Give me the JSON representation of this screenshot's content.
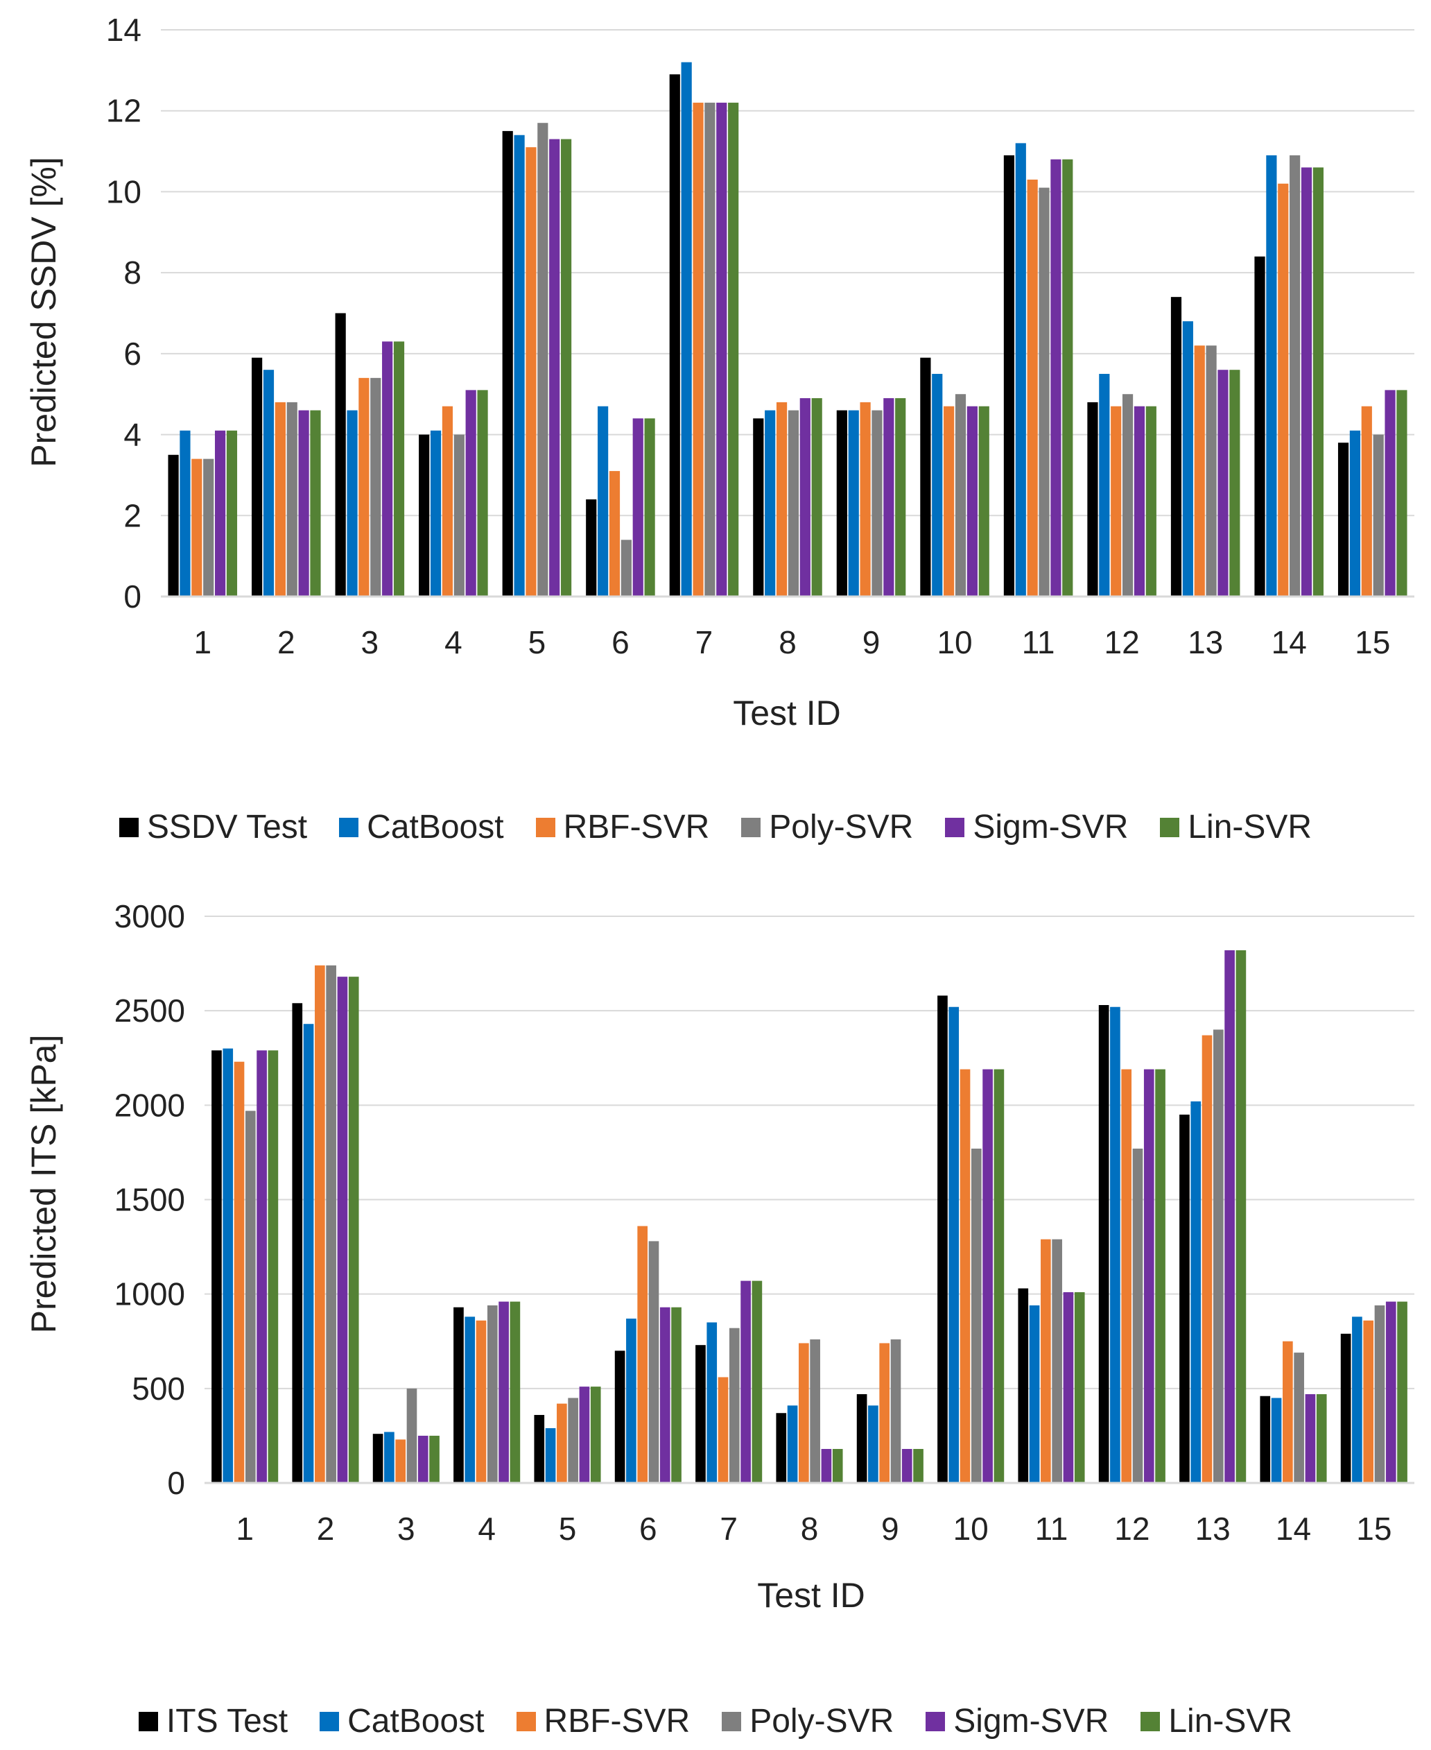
{
  "colors": {
    "test": "#000000",
    "catboost": "#0070C0",
    "rbf": "#ED7D31",
    "poly": "#7F7F7F",
    "sigm": "#7030A0",
    "lin": "#548235",
    "grid": "#D9D9D9",
    "axis": "#D9D9D9"
  },
  "chart_data": [
    {
      "type": "bar",
      "title": "",
      "xlabel": "Test ID",
      "ylabel": "Predicted SSDV [%]",
      "ylim": [
        0,
        14
      ],
      "yticks": [
        "0",
        "2",
        "4",
        "6",
        "8",
        "10",
        "12",
        "14"
      ],
      "categories": [
        "1",
        "2",
        "3",
        "4",
        "5",
        "6",
        "7",
        "8",
        "9",
        "10",
        "11",
        "12",
        "13",
        "14",
        "15"
      ],
      "grid": true,
      "legend_position": "bottom",
      "series": [
        {
          "name": "SSDV Test",
          "color_key": "test",
          "values": [
            3.5,
            5.9,
            7.0,
            4.0,
            11.5,
            2.4,
            12.9,
            4.4,
            4.6,
            5.9,
            10.9,
            4.8,
            7.4,
            8.4,
            3.8
          ]
        },
        {
          "name": "CatBoost",
          "color_key": "catboost",
          "values": [
            4.1,
            5.6,
            4.6,
            4.1,
            11.4,
            4.7,
            13.2,
            4.6,
            4.6,
            5.5,
            11.2,
            5.5,
            6.8,
            10.9,
            4.1
          ]
        },
        {
          "name": "RBF-SVR",
          "color_key": "rbf",
          "values": [
            3.4,
            4.8,
            5.4,
            4.7,
            11.1,
            3.1,
            12.2,
            4.8,
            4.8,
            4.7,
            10.3,
            4.7,
            6.2,
            10.2,
            4.7
          ]
        },
        {
          "name": "Poly-SVR",
          "color_key": "poly",
          "values": [
            3.4,
            4.8,
            5.4,
            4.0,
            11.7,
            1.4,
            12.2,
            4.6,
            4.6,
            5.0,
            10.1,
            5.0,
            6.2,
            10.9,
            4.0
          ]
        },
        {
          "name": "Sigm-SVR",
          "color_key": "sigm",
          "values": [
            4.1,
            4.6,
            6.3,
            5.1,
            11.3,
            4.4,
            12.2,
            4.9,
            4.9,
            4.7,
            10.8,
            4.7,
            5.6,
            10.6,
            5.1
          ]
        },
        {
          "name": "Lin-SVR",
          "color_key": "lin",
          "values": [
            4.1,
            4.6,
            6.3,
            5.1,
            11.3,
            4.4,
            12.2,
            4.9,
            4.9,
            4.7,
            10.8,
            4.7,
            5.6,
            10.6,
            5.1
          ]
        }
      ]
    },
    {
      "type": "bar",
      "title": "",
      "xlabel": "Test ID",
      "ylabel": "Predicted ITS [kPa]",
      "ylim": [
        0,
        3000
      ],
      "yticks": [
        "0",
        "500",
        "1000",
        "1500",
        "2000",
        "2500",
        "3000"
      ],
      "categories": [
        "1",
        "2",
        "3",
        "4",
        "5",
        "6",
        "7",
        "8",
        "9",
        "10",
        "11",
        "12",
        "13",
        "14",
        "15"
      ],
      "grid": true,
      "legend_position": "bottom",
      "series": [
        {
          "name": "ITS Test",
          "color_key": "test",
          "values": [
            2290,
            2540,
            260,
            930,
            360,
            700,
            730,
            370,
            470,
            2580,
            1030,
            2530,
            1950,
            460,
            790
          ]
        },
        {
          "name": "CatBoost",
          "color_key": "catboost",
          "values": [
            2300,
            2430,
            270,
            880,
            290,
            870,
            850,
            410,
            410,
            2520,
            940,
            2520,
            2020,
            450,
            880
          ]
        },
        {
          "name": "RBF-SVR",
          "color_key": "rbf",
          "values": [
            2230,
            2740,
            230,
            860,
            420,
            1360,
            560,
            740,
            740,
            2190,
            1290,
            2190,
            2370,
            750,
            860
          ]
        },
        {
          "name": "Poly-SVR",
          "color_key": "poly",
          "values": [
            1970,
            2740,
            500,
            940,
            450,
            1280,
            820,
            760,
            760,
            1770,
            1290,
            1770,
            2400,
            690,
            940
          ]
        },
        {
          "name": "Sigm-SVR",
          "color_key": "sigm",
          "values": [
            2290,
            2680,
            250,
            960,
            510,
            930,
            1070,
            180,
            180,
            2190,
            1010,
            2190,
            2820,
            470,
            960
          ]
        },
        {
          "name": "Lin-SVR",
          "color_key": "lin",
          "values": [
            2290,
            2680,
            250,
            960,
            510,
            930,
            1070,
            180,
            180,
            2190,
            1010,
            2190,
            2820,
            470,
            960
          ]
        }
      ]
    }
  ]
}
